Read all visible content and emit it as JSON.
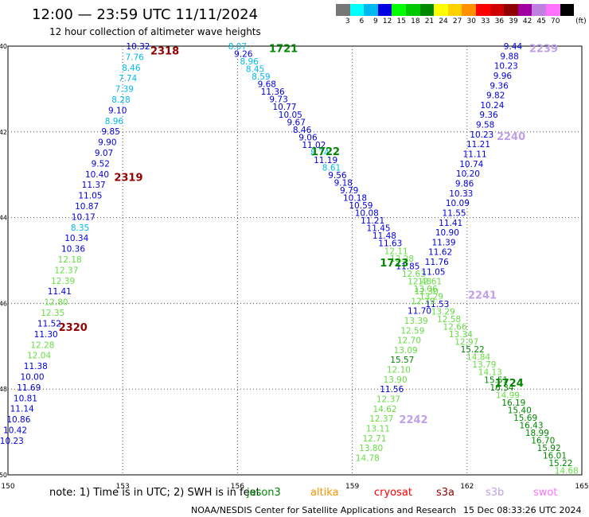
{
  "header": {
    "title": "12:00 — 23:59 UTC 11/11/2024",
    "subtitle": "12 hour collection of altimeter wave heights"
  },
  "legend": {
    "unit": "(ft)",
    "bins": [
      {
        "label": "3",
        "color": "#777777"
      },
      {
        "label": "6",
        "color": "#00ffff"
      },
      {
        "label": "9",
        "color": "#00b8f0"
      },
      {
        "label": "12",
        "color": "#0000e0"
      },
      {
        "label": "15",
        "color": "#00ff00"
      },
      {
        "label": "18",
        "color": "#00c800"
      },
      {
        "label": "21",
        "color": "#008800"
      },
      {
        "label": "24",
        "color": "#ffff00"
      },
      {
        "label": "27",
        "color": "#ffd000"
      },
      {
        "label": "30",
        "color": "#ff9000"
      },
      {
        "label": "33",
        "color": "#ff0000"
      },
      {
        "label": "36",
        "color": "#d00000"
      },
      {
        "label": "39",
        "color": "#900000"
      },
      {
        "label": "42",
        "color": "#a000a0"
      },
      {
        "label": "45",
        "color": "#c080e0"
      },
      {
        "label": "70",
        "color": "#ff70ff"
      },
      {
        "label": "",
        "color": "#000000"
      }
    ]
  },
  "map": {
    "lon_range": [
      150,
      165
    ],
    "lat_range": [
      40,
      50
    ],
    "lon_ticks": [
      "150",
      "153",
      "156",
      "159",
      "162",
      "165"
    ],
    "lat_ticks": [
      "40",
      "42",
      "44",
      "46",
      "48",
      "50"
    ],
    "grid": true
  },
  "tracks": [
    {
      "id": "a",
      "lon_top": 153.4,
      "lat_top": 40.0,
      "lon_bottom": 150.1,
      "lat_bottom": 49.2,
      "values": [
        "10.32",
        "7.76",
        "8.46",
        "7.74",
        "7.39",
        "8.28",
        "9.10",
        "8.96",
        "9.85",
        "9.90",
        "9.07",
        "9.52",
        "10.40",
        "11.37",
        "11.05",
        "10.87",
        "10.17",
        "8.35",
        "10.34",
        "10.36",
        "12.18",
        "12.37",
        "12.39",
        "11.41",
        "12.80",
        "12.35",
        "11.52",
        "11.30",
        "12.28",
        "12.04",
        "11.38",
        "10.00",
        "11.69",
        "10.81",
        "11.14",
        "10.86",
        "10.42",
        "10.23"
      ],
      "colors": [
        "#0000e0",
        "#00b8f0",
        "#00b8f0",
        "#00b8f0",
        "#00b8f0",
        "#00b8f0",
        "#0000e0",
        "#00b8f0",
        "#0000e0",
        "#0000e0",
        "#0000e0",
        "#0000e0",
        "#0000e0",
        "#0000e0",
        "#0000e0",
        "#0000e0",
        "#0000e0",
        "#00b8f0",
        "#0000e0",
        "#0000e0",
        "#66dd44",
        "#66dd44",
        "#66dd44",
        "#0000e0",
        "#66dd44",
        "#66dd44",
        "#0000e0",
        "#0000e0",
        "#66dd44",
        "#66dd44",
        "#0000e0",
        "#0000e0",
        "#0000e0",
        "#0000e0",
        "#0000e0",
        "#0000e0",
        "#0000e0",
        "#0000e0"
      ]
    },
    {
      "id": "b",
      "lon_top": 156.0,
      "lat_top": 40.0,
      "lon_bottom": 164.6,
      "lat_bottom": 49.9,
      "values": [
        "8.07",
        "9.26",
        "8.96",
        "8.45",
        "8.59",
        "9.68",
        "11.36",
        "9.73",
        "10.77",
        "10.05",
        "9.67",
        "8.46",
        "9.06",
        "11.02",
        "8.74",
        "11.19",
        "8.61",
        "9.56",
        "9.18",
        "9.79",
        "10.18",
        "10.59",
        "10.08",
        "11.21",
        "11.45",
        "11.48",
        "11.63",
        "12.11",
        "12.28",
        "11.85",
        "12.63",
        "12.48",
        "13.06",
        "13.29",
        "11.53",
        "13.29",
        "12.58",
        "12.66",
        "13.34",
        "12.97",
        "15.22",
        "14.84",
        "13.79",
        "14.13",
        "15.51",
        "16.34",
        "14.99",
        "16.19",
        "15.40",
        "15.69",
        "16.43",
        "18.99",
        "16.70",
        "15.92",
        "16.01",
        "15.22",
        "14.68"
      ],
      "colors": [
        "#00b8f0",
        "#0000e0",
        "#00b8f0",
        "#00b8f0",
        "#00b8f0",
        "#0000e0",
        "#0000e0",
        "#0000e0",
        "#0000e0",
        "#0000e0",
        "#0000e0",
        "#0000e0",
        "#0000e0",
        "#0000e0",
        "#00b8f0",
        "#0000e0",
        "#00b8f0",
        "#0000e0",
        "#0000e0",
        "#0000e0",
        "#0000e0",
        "#0000e0",
        "#0000e0",
        "#0000e0",
        "#0000e0",
        "#0000e0",
        "#0000e0",
        "#66dd44",
        "#66dd44",
        "#0000e0",
        "#66dd44",
        "#66dd44",
        "#66dd44",
        "#66dd44",
        "#0000e0",
        "#66dd44",
        "#66dd44",
        "#66dd44",
        "#66dd44",
        "#66dd44",
        "#008800",
        "#66dd44",
        "#66dd44",
        "#66dd44",
        "#008800",
        "#008800",
        "#66dd44",
        "#008800",
        "#008800",
        "#008800",
        "#008800",
        "#008800",
        "#008800",
        "#008800",
        "#008800",
        "#008800",
        "#66dd44"
      ]
    },
    {
      "id": "c",
      "lon_top": 163.2,
      "lat_top": 40.0,
      "lon_bottom": 159.4,
      "lat_bottom": 49.6,
      "values": [
        "9.44",
        "9.88",
        "10.23",
        "9.96",
        "9.36",
        "9.82",
        "10.24",
        "9.36",
        "9.58",
        "10.23",
        "11.21",
        "11.11",
        "10.74",
        "10.20",
        "9.86",
        "10.33",
        "10.09",
        "11.55",
        "11.41",
        "10.90",
        "11.39",
        "11.62",
        "11.76",
        "11.05",
        "12.61",
        "12.30",
        "12.79",
        "11.70",
        "13.39",
        "12.59",
        "12.70",
        "13.09",
        "15.57",
        "12.10",
        "13.90",
        "11.56",
        "12.37",
        "14.62",
        "12.37",
        "13.11",
        "12.71",
        "13.80",
        "14.78"
      ],
      "colors": [
        "#0000e0",
        "#0000e0",
        "#0000e0",
        "#0000e0",
        "#0000e0",
        "#0000e0",
        "#0000e0",
        "#0000e0",
        "#0000e0",
        "#0000e0",
        "#0000e0",
        "#0000e0",
        "#0000e0",
        "#0000e0",
        "#0000e0",
        "#0000e0",
        "#0000e0",
        "#0000e0",
        "#0000e0",
        "#0000e0",
        "#0000e0",
        "#0000e0",
        "#0000e0",
        "#0000e0",
        "#66dd44",
        "#66dd44",
        "#66dd44",
        "#0000e0",
        "#66dd44",
        "#66dd44",
        "#66dd44",
        "#66dd44",
        "#008800",
        "#66dd44",
        "#66dd44",
        "#0000e0",
        "#66dd44",
        "#66dd44",
        "#66dd44",
        "#66dd44",
        "#66dd44",
        "#66dd44",
        "#66dd44"
      ]
    }
  ],
  "pass_labels": [
    {
      "text": "2318",
      "color": "#900000",
      "lon": 154.1,
      "lat": 40.1
    },
    {
      "text": "2319",
      "color": "#900000",
      "lon": 153.15,
      "lat": 43.05
    },
    {
      "text": "2320",
      "color": "#900000",
      "lon": 151.7,
      "lat": 46.55
    },
    {
      "text": "1721",
      "color": "#008800",
      "lon": 157.2,
      "lat": 40.05
    },
    {
      "text": "1722",
      "color": "#008800",
      "lon": 158.3,
      "lat": 42.45
    },
    {
      "text": "1723",
      "color": "#008800",
      "lon": 160.1,
      "lat": 45.05
    },
    {
      "text": "1724",
      "color": "#008800",
      "lon": 163.1,
      "lat": 47.85
    },
    {
      "text": "2239",
      "color": "#c0a0e8",
      "lon": 164.0,
      "lat": 40.05
    },
    {
      "text": "2240",
      "color": "#c0a0e8",
      "lon": 163.15,
      "lat": 42.1
    },
    {
      "text": "2241",
      "color": "#c0a0e8",
      "lon": 162.4,
      "lat": 45.8
    },
    {
      "text": "2242",
      "color": "#c0a0e8",
      "lon": 160.6,
      "lat": 48.7
    }
  ],
  "footer": {
    "note": "note:  1) Time is in UTC;  2) SWH is in feet",
    "satellites": [
      {
        "name": "jason3",
        "color": "#008800",
        "offset": 0
      },
      {
        "name": "altika",
        "color": "#ff9000",
        "offset": 80
      },
      {
        "name": "cryosat",
        "color": "#ff0000",
        "offset": 160
      },
      {
        "name": "s3a",
        "color": "#900000",
        "offset": 238
      },
      {
        "name": "s3b",
        "color": "#c0a0e8",
        "offset": 300
      },
      {
        "name": "swot",
        "color": "#ff70ff",
        "offset": 360
      }
    ],
    "credit": "NOAA/NESDIS Center for Satellite Applications and Research",
    "timestamp": "15 Dec 08:33:26 UTC 2024"
  }
}
